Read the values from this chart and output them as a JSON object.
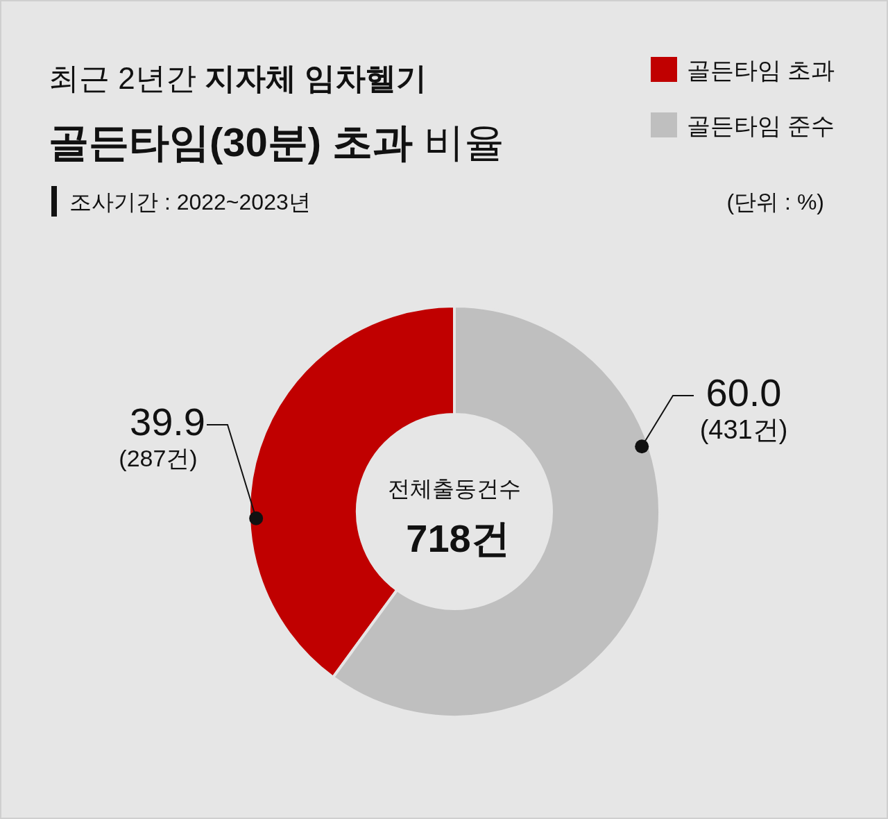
{
  "chart_data": {
    "type": "donut",
    "title": "최근 2년간 **지자체 임차헬기**",
    "subtitle": "**골든타임(30분) 초과** 비율",
    "categories": [
      "골든타임 초과",
      "골든타임 준수"
    ],
    "values": [
      39.9,
      60.0
    ],
    "colors": [
      "#c00000",
      "#bfbfbf"
    ],
    "value_labels": [
      "39.9",
      "60.0"
    ],
    "legend": "top right",
    "annotations": [
      "조사기간 : 2022~2023년",
      "(단위 : %)",
      "(287건)",
      "(431건)",
      "전체출동건수",
      "718건"
    ]
  }
}
